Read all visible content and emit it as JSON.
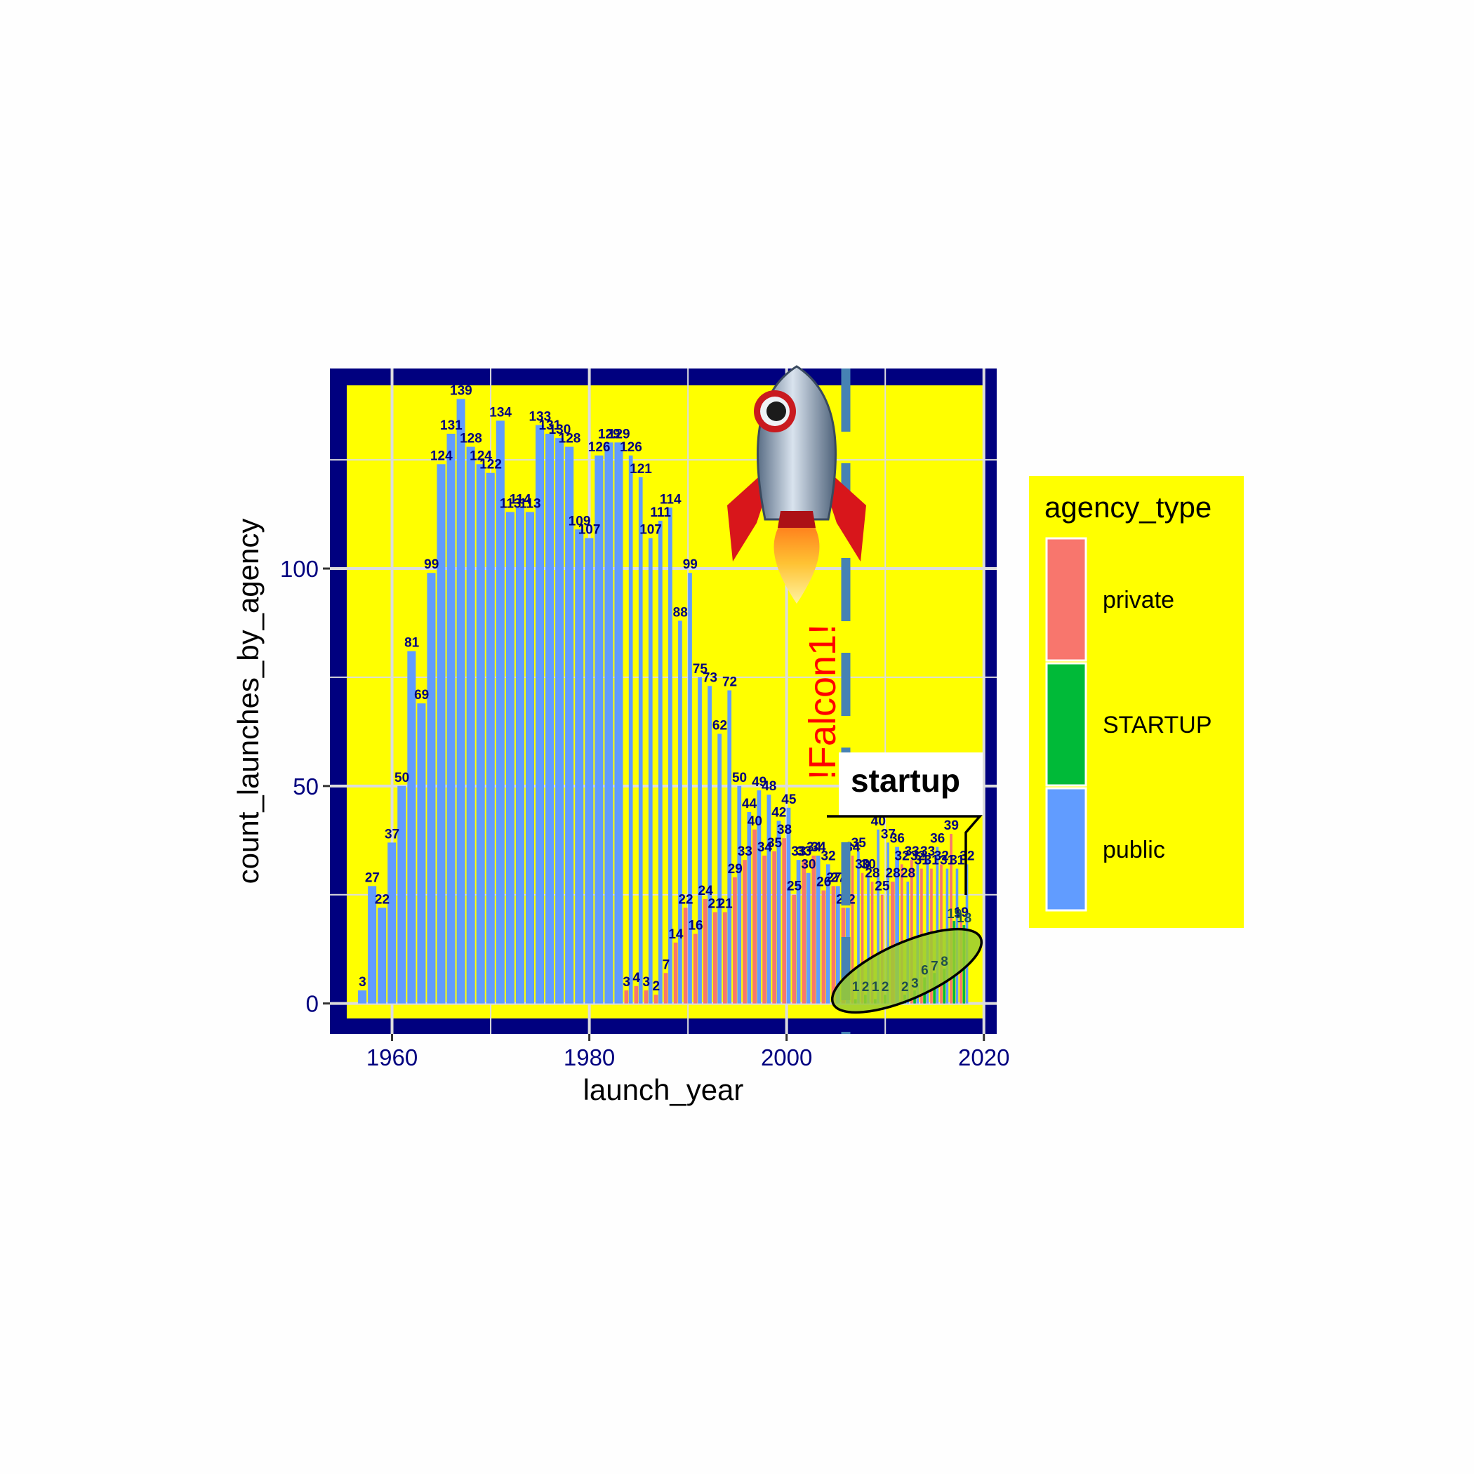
{
  "chart_data": {
    "type": "bar",
    "title": "",
    "xlabel": "launch_year",
    "ylabel": "count_launches_by_agency",
    "xlim": [
      1953.7,
      2021.3
    ],
    "ylim": [
      -7,
      146
    ],
    "x_ticks": [
      1960,
      1980,
      2000,
      2020
    ],
    "x_tick_labels": [
      "1960",
      "1980",
      "2000",
      "2020"
    ],
    "y_ticks": [
      0,
      50,
      100
    ],
    "y_tick_labels": [
      "0",
      "50",
      "100"
    ],
    "grid": true,
    "legend": {
      "title": "agency_type",
      "position": "right",
      "entries": [
        {
          "name": "private",
          "color": "#F8766D"
        },
        {
          "name": "STARTUP",
          "color": "#00BA38"
        },
        {
          "name": "public",
          "color": "#619CFF"
        }
      ]
    },
    "series": [
      {
        "name": "public",
        "color": "#619CFF",
        "x": [
          1957,
          1958,
          1959,
          1960,
          1961,
          1962,
          1963,
          1964,
          1965,
          1966,
          1967,
          1968,
          1969,
          1970,
          1971,
          1972,
          1973,
          1974,
          1975,
          1976,
          1977,
          1978,
          1979,
          1980,
          1981,
          1982,
          1983,
          1984,
          1985,
          1986,
          1987,
          1988,
          1989,
          1990,
          1991,
          1992,
          1993,
          1994,
          1995,
          1996,
          1997,
          1998,
          1999,
          2000,
          2001,
          2002,
          2003,
          2004,
          2005,
          2006,
          2007,
          2008,
          2009,
          2010,
          2011,
          2012,
          2013,
          2014,
          2015,
          2016,
          2017,
          2018
        ],
        "values": [
          3,
          27,
          22,
          37,
          50,
          81,
          69,
          99,
          124,
          131,
          139,
          128,
          124,
          122,
          134,
          113,
          114,
          113,
          133,
          131,
          130,
          128,
          109,
          107,
          126,
          129,
          129,
          126,
          121,
          107,
          111,
          114,
          88,
          99,
          75,
          73,
          62,
          72,
          50,
          44,
          49,
          48,
          42,
          45,
          33,
          30,
          34,
          32,
          27,
          22,
          35,
          30,
          40,
          37,
          36,
          28,
          32,
          33,
          36,
          31,
          31,
          32
        ]
      },
      {
        "name": "private",
        "color": "#F8766D",
        "x": [
          1984,
          1985,
          1986,
          1987,
          1988,
          1989,
          1990,
          1991,
          1992,
          1993,
          1994,
          1995,
          1996,
          1997,
          1998,
          1999,
          2000,
          2001,
          2002,
          2003,
          2004,
          2005,
          2006,
          2007,
          2008,
          2009,
          2010,
          2011,
          2012,
          2013,
          2014,
          2015,
          2016,
          2017,
          2018
        ],
        "values": [
          3,
          4,
          3,
          2,
          7,
          14,
          22,
          16,
          24,
          21,
          21,
          29,
          33,
          40,
          34,
          35,
          38,
          25,
          33,
          34,
          26,
          27,
          22,
          34,
          30,
          28,
          25,
          28,
          32,
          33,
          31,
          31,
          32,
          39,
          19
        ]
      },
      {
        "name": "STARTUP",
        "color": "#00BA38",
        "x": [
          2007,
          2008,
          2009,
          2010,
          2012,
          2013,
          2014,
          2015,
          2016,
          2017,
          2018
        ],
        "values": [
          1,
          2,
          1,
          2,
          2,
          3,
          6,
          7,
          8,
          19,
          18
        ]
      }
    ],
    "annotations": [
      {
        "type": "label",
        "text": "startup"
      },
      {
        "type": "vertical-text",
        "text": "!Falcon1!",
        "x": 2006
      },
      {
        "type": "vline",
        "x": 2006,
        "style": "dashed"
      },
      {
        "type": "ellipse",
        "note": "highlights STARTUP bars 2006-2018"
      },
      {
        "type": "image",
        "icon": "rocket-icon"
      }
    ]
  },
  "colors": {
    "panel_border": "#00007F",
    "panel_fill": "#FFFF00",
    "grid": "#DCDCDC",
    "tick_text": "#00007F",
    "label_text": "#00007F",
    "annotation_red": "#FF0000",
    "vline": "#4682B4",
    "ellipse_fill": "#9ACD32"
  }
}
